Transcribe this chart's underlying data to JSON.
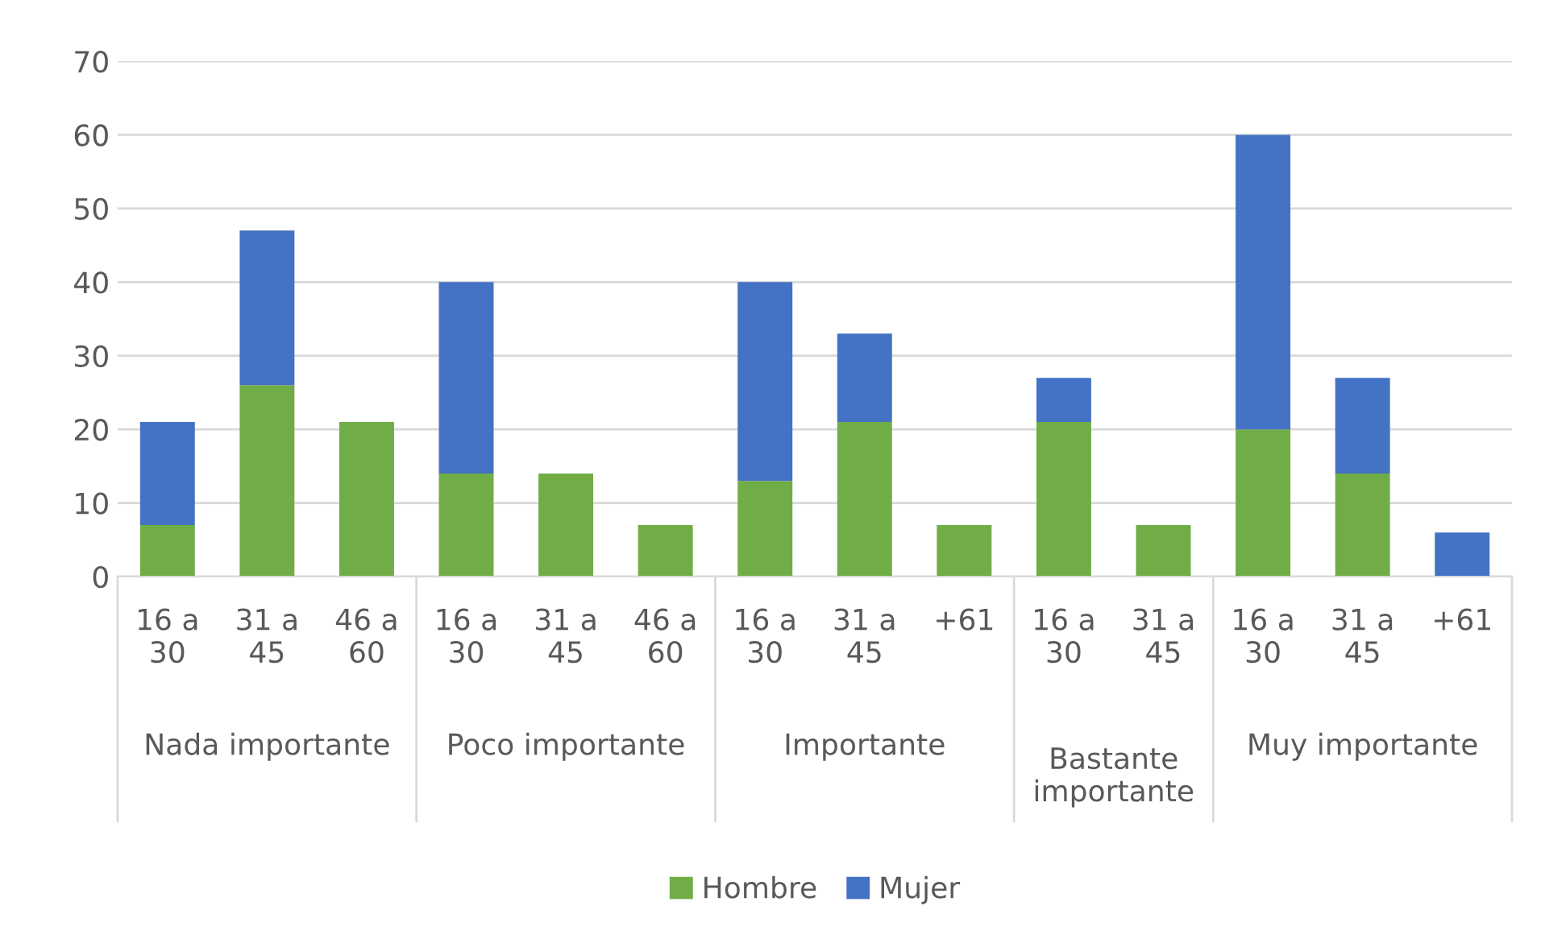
{
  "chart_data": {
    "type": "bar",
    "stacked": true,
    "categories": [
      "16 a 30",
      "31 a 45",
      "46 a 60",
      "16 a 30",
      "31 a 45",
      "46 a 60",
      "16 a 30",
      "31 a 45",
      "+61",
      "16 a 30",
      "31 a 45",
      "16 a 30",
      "31 a 45",
      "+61"
    ],
    "series": [
      {
        "name": "Hombre",
        "color": "#70ad47",
        "values": [
          7,
          26,
          21,
          14,
          14,
          7,
          13,
          21,
          7,
          21,
          7,
          20,
          14,
          null
        ]
      },
      {
        "name": "Mujer",
        "color": "#4472c4",
        "values": [
          14,
          21,
          null,
          26,
          null,
          null,
          27,
          12,
          null,
          6,
          null,
          40,
          13,
          6
        ]
      }
    ],
    "annotations": [
      "Nada importante",
      "Poco importante",
      "Importante",
      "Bastante importante",
      "Muy importante"
    ],
    "ylim": [
      0,
      70
    ],
    "yticks": [
      0,
      10,
      20,
      30,
      40,
      50,
      60,
      70
    ],
    "grid": "y",
    "legend": "bottom"
  }
}
